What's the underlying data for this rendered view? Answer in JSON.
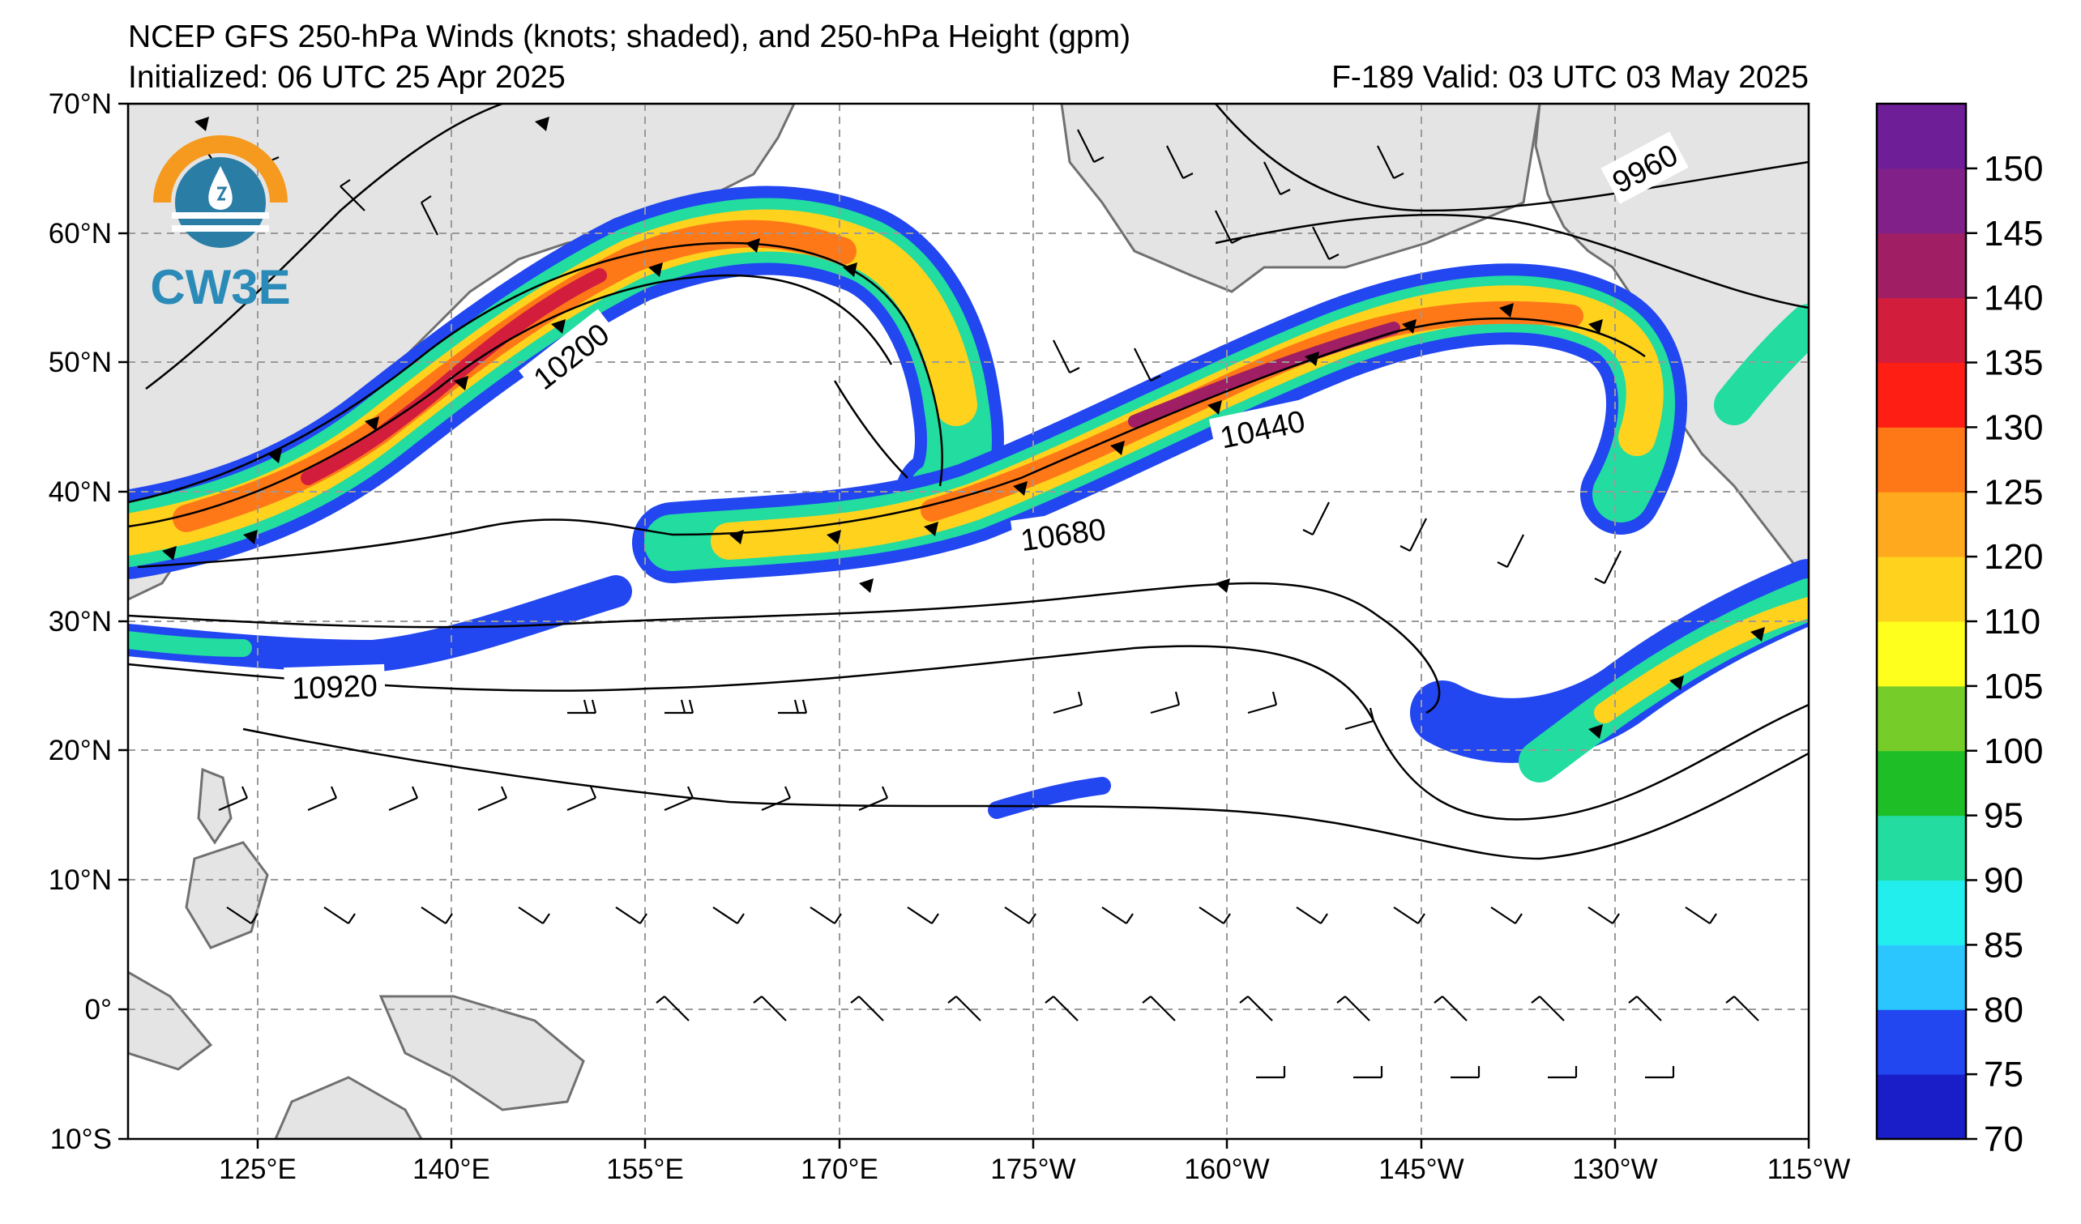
{
  "header": {
    "title": "NCEP GFS 250-hPa Winds (knots; shaded), and 250-hPa Height (gpm)",
    "initialized": "Initialized: 06 UTC 25 Apr 2025",
    "valid": "F-189  Valid: 03 UTC 03 May 2025"
  },
  "logo": {
    "text": "CW3E"
  },
  "map": {
    "lon_ticks": [
      "125°E",
      "140°E",
      "155°E",
      "170°E",
      "175°W",
      "160°W",
      "145°W",
      "130°W",
      "115°W"
    ],
    "lat_ticks": [
      "70°N",
      "60°N",
      "50°N",
      "40°N",
      "30°N",
      "20°N",
      "10°N",
      "0°",
      "10°S"
    ],
    "height_labels": [
      "10200",
      "10440",
      "10680",
      "10920",
      "9960"
    ]
  },
  "colorbar": {
    "ticks": [
      "70",
      "75",
      "80",
      "85",
      "90",
      "95",
      "100",
      "105",
      "110",
      "120",
      "125",
      "130",
      "135",
      "140",
      "145",
      "150"
    ],
    "colors": [
      "#1a1ec8",
      "#2246f0",
      "#2cc6ff",
      "#22eeee",
      "#22dca0",
      "#1ebe26",
      "#76cc28",
      "#ffff1e",
      "#ffd21e",
      "#ffaa1e",
      "#ff7818",
      "#ff1e14",
      "#d21e3c",
      "#a01e64",
      "#82208a",
      "#6e1e96"
    ]
  }
}
